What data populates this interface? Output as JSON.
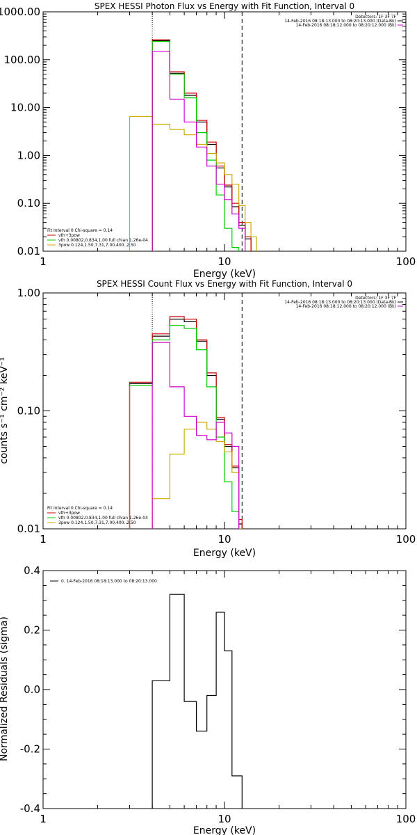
{
  "chart_data": [
    {
      "type": "line",
      "title": "SPEX HESSI Photon Flux vs Energy with Fit Function, Interval 0",
      "xlabel": "Energy (keV)",
      "ylabel": "",
      "xscale": "log",
      "yscale": "log",
      "xlim": [
        1,
        100
      ],
      "ylim": [
        0.01,
        1000
      ],
      "xticks": [
        "1",
        "10",
        "100"
      ],
      "yticks": [
        "1000.00",
        "100.00",
        "10.00",
        "1.00",
        "0.10",
        "0.01"
      ],
      "ytick_values": [
        1000,
        100,
        10,
        1,
        0.1,
        0.01
      ],
      "vlines": [
        {
          "x": 4.0,
          "style": "dotted",
          "color": "#000000"
        },
        {
          "x": 12.5,
          "style": "dashed",
          "color": "#000000"
        }
      ],
      "info": [
        "Detectors: 1F 3F 7F",
        "14-Feb-2016 08:18:13.000 to 08:20:13.000 (Data-Bk)",
        "14-Feb-2016 08:18:12.000 to 08:20:12.000 (Bk)"
      ],
      "info_line_colors": [
        "#000000",
        "#000000",
        "#cc00cc"
      ],
      "fit_text": "Fit Interval 0   Chi-square = 0.14",
      "legend": [
        {
          "label": "vth+3pow",
          "color": "#cc0000"
        },
        {
          "label": "vth 0.00802,0.834,1.00  full chian 1.26e-04",
          "color": "#00cc00"
        },
        {
          "label": "3pow 0.124,1.50,7.31,7.00,400.,2.50",
          "color": "#ccaa00"
        }
      ],
      "x_edges": [
        3.0,
        4.0,
        5.0,
        6.0,
        7.0,
        8.0,
        9.0,
        10.0,
        11.0,
        12.0,
        13.0,
        14.0,
        15.0
      ],
      "series": [
        {
          "name": "Data-Bk",
          "color": "#000000",
          "values": [
            null,
            250,
            52,
            18,
            5.0,
            1.7,
            0.55,
            0.22,
            0.085,
            0.035,
            0.018,
            null
          ]
        },
        {
          "name": "vth+3pow",
          "color": "#cc0000",
          "values": [
            null,
            260,
            56,
            20,
            5.4,
            1.9,
            0.6,
            0.24,
            0.1,
            0.04,
            0.02,
            null
          ]
        },
        {
          "name": "vth",
          "color": "#00cc00",
          "values": [
            null,
            240,
            50,
            16,
            3.0,
            0.8,
            0.15,
            0.03,
            0.012,
            null,
            null,
            null
          ]
        },
        {
          "name": "3pow",
          "color": "#ccaa00",
          "values": [
            6.5,
            4.5,
            3.5,
            2.7,
            1.7,
            1.1,
            0.7,
            0.4,
            0.25,
            0.09,
            0.04,
            0.02
          ]
        },
        {
          "name": "Bk",
          "color": "#cc00cc",
          "values": [
            null,
            150,
            15,
            5,
            1.5,
            0.6,
            0.25,
            0.12,
            0.06,
            0.03,
            null,
            null
          ]
        }
      ]
    },
    {
      "type": "line",
      "title": "SPEX HESSI Count Flux vs Energy with Fit Function, Interval 0",
      "xlabel": "Energy (keV)",
      "ylabel": "counts s⁻¹ cm⁻² keV⁻¹",
      "xscale": "log",
      "yscale": "log",
      "xlim": [
        1,
        100
      ],
      "ylim": [
        0.01,
        1.0
      ],
      "xticks": [
        "1",
        "10",
        "100"
      ],
      "yticks": [
        "1.00",
        "0.10",
        "0.01"
      ],
      "ytick_values": [
        1.0,
        0.1,
        0.01
      ],
      "vlines": [
        {
          "x": 4.0,
          "style": "dotted",
          "color": "#000000"
        },
        {
          "x": 12.5,
          "style": "dashed",
          "color": "#000000"
        }
      ],
      "info": [
        "Detectors: 1F 3F 7F",
        "14-Feb-2016 08:18:13.000 to 08:20:13.000 (Data-Bk)",
        "14-Feb-2016 08:18:12.000 to 08:20:12.000 (Bk)"
      ],
      "info_line_colors": [
        "#000000",
        "#000000",
        "#cc00cc"
      ],
      "fit_text": "Fit Interval 0   Chi-square = 0.14",
      "legend": [
        {
          "label": "vth+3pow",
          "color": "#cc0000"
        },
        {
          "label": "vth 0.00802,0.834,1.00  full chian 1.26e-04",
          "color": "#00cc00"
        },
        {
          "label": "3pow 0.124,1.50,7.31,7.00,400.,2.50",
          "color": "#ccaa00"
        }
      ],
      "x_edges": [
        3.0,
        4.0,
        5.0,
        6.0,
        7.0,
        8.0,
        9.0,
        10.0,
        11.0,
        12.0,
        12.5
      ],
      "series": [
        {
          "name": "Data-Bk",
          "color": "#000000",
          "values": [
            0.17,
            0.43,
            0.6,
            0.57,
            0.39,
            0.2,
            0.085,
            0.05,
            0.033,
            0.011
          ]
        },
        {
          "name": "vth+3pow",
          "color": "#cc0000",
          "values": [
            0.175,
            0.45,
            0.63,
            0.6,
            0.4,
            0.21,
            0.088,
            0.052,
            0.034,
            0.012
          ]
        },
        {
          "name": "vth",
          "color": "#00cc00",
          "values": [
            0.165,
            0.4,
            0.53,
            0.5,
            0.33,
            0.16,
            0.06,
            0.025,
            0.014,
            0.01
          ]
        },
        {
          "name": "3pow",
          "color": "#ccaa00",
          "values": [
            null,
            0.018,
            0.043,
            0.07,
            0.08,
            0.07,
            0.055,
            0.045,
            0.03,
            0.01
          ]
        },
        {
          "name": "Bk",
          "color": "#cc00cc",
          "values": [
            null,
            0.38,
            0.16,
            0.09,
            0.062,
            0.057,
            0.08,
            0.065,
            0.05,
            null
          ]
        }
      ]
    },
    {
      "type": "line",
      "title": "",
      "xlabel": "Energy (keV)",
      "ylabel": "Normalized Residuals (sigma)",
      "xscale": "log",
      "yscale": "linear",
      "xlim": [
        1,
        100
      ],
      "ylim": [
        -0.4,
        0.4
      ],
      "xticks": [
        "1",
        "10",
        "100"
      ],
      "yticks": [
        "0.4",
        "0.2",
        "0.0",
        "-0.2",
        "-0.4"
      ],
      "ytick_values": [
        0.4,
        0.2,
        0.0,
        -0.2,
        -0.4
      ],
      "legend": [
        {
          "label": "0. 14-Feb-2016 08:18:13.000 to 08:20:13.000",
          "color": "#000000"
        }
      ],
      "x_edges": [
        4.0,
        5.0,
        6.0,
        7.0,
        8.0,
        9.0,
        10.0,
        11.0,
        12.5
      ],
      "series": [
        {
          "name": "0. 14-Feb-2016 08:18:13.000 to 08:20:13.000",
          "color": "#000000",
          "values": [
            0.03,
            0.32,
            -0.04,
            -0.14,
            -0.02,
            0.26,
            0.13,
            -0.29
          ]
        }
      ]
    }
  ]
}
